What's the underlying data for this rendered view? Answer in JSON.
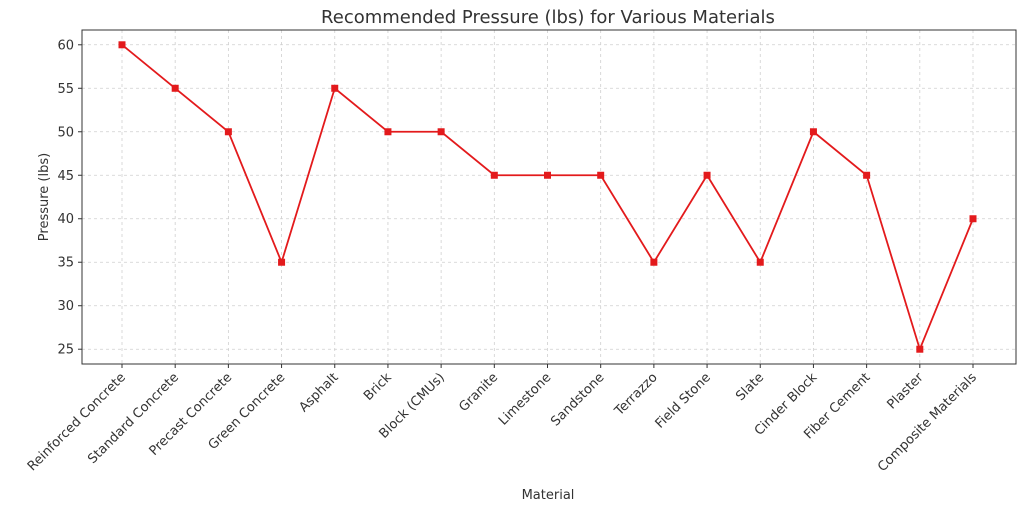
{
  "chart_data": {
    "type": "line",
    "title": "Recommended Pressure (lbs) for Various Materials",
    "xlabel": "Material",
    "ylabel": "Pressure (lbs)",
    "ylim": [
      23.3,
      61.7
    ],
    "yticks": [
      25,
      30,
      35,
      40,
      45,
      50,
      55,
      60
    ],
    "grid": true,
    "categories": [
      "Reinforced Concrete",
      "Standard Concrete",
      "Precast Concrete",
      "Green Concrete",
      "Asphalt",
      "Brick",
      "Block (CMUs)",
      "Granite",
      "Limestone",
      "Sandstone",
      "Terrazzo",
      "Field Stone",
      "Slate",
      "Cinder Block",
      "Fiber Cement",
      "Plaster",
      "Composite Materials"
    ],
    "series": [
      {
        "color": "#e31a1c",
        "marker": "square",
        "values": [
          60,
          55,
          50,
          35,
          55,
          50,
          50,
          45,
          45,
          45,
          35,
          45,
          35,
          50,
          45,
          25,
          40
        ]
      }
    ]
  }
}
